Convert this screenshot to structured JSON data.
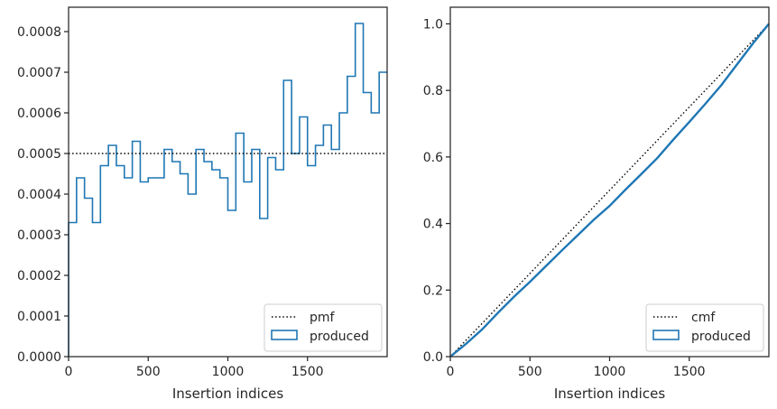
{
  "chart_data": [
    {
      "type": "histogram-step",
      "xlabel": "Insertion indices",
      "ylabel": "",
      "xlim": [
        0,
        2000
      ],
      "ylim": [
        0,
        0.00086
      ],
      "xticks": [
        0,
        500,
        1000,
        1500
      ],
      "xtick_labels": [
        "0",
        "500",
        "1000",
        "1500"
      ],
      "yticks": [
        0,
        0.0001,
        0.0002,
        0.0003,
        0.0004,
        0.0005,
        0.0006,
        0.0007,
        0.0008
      ],
      "ytick_labels": [
        "0.0000",
        "0.0001",
        "0.0002",
        "0.0003",
        "0.0004",
        "0.0005",
        "0.0006",
        "0.0007",
        "0.0008"
      ],
      "grid": false,
      "legend_position": "lower-right",
      "reference": {
        "name": "pmf",
        "y": 0.0005,
        "style": "dotted",
        "color": "#000000"
      },
      "series": [
        {
          "name": "produced",
          "color": "#1f77b4",
          "bin_edges": [
            0,
            50,
            100,
            150,
            200,
            250,
            300,
            350,
            400,
            450,
            500,
            550,
            600,
            650,
            700,
            750,
            800,
            850,
            900,
            950,
            1000,
            1050,
            1100,
            1150,
            1200,
            1250,
            1300,
            1350,
            1400,
            1450,
            1500,
            1550,
            1600,
            1650,
            1700,
            1750,
            1800,
            1850,
            1900,
            1950,
            2000
          ],
          "values": [
            0.00033,
            0.00044,
            0.00039,
            0.00033,
            0.00047,
            0.00052,
            0.00047,
            0.00044,
            0.00053,
            0.00043,
            0.00044,
            0.00044,
            0.00051,
            0.00048,
            0.00045,
            0.0004,
            0.00051,
            0.00048,
            0.00046,
            0.00044,
            0.00036,
            0.00055,
            0.00043,
            0.00051,
            0.00034,
            0.00049,
            0.00046,
            0.00068,
            0.0005,
            0.00059,
            0.00047,
            0.00052,
            0.00057,
            0.00051,
            0.0006,
            0.00069,
            0.00082,
            0.00065,
            0.0006,
            0.0007
          ]
        }
      ]
    },
    {
      "type": "line",
      "xlabel": "Insertion indices",
      "ylabel": "",
      "xlim": [
        0,
        2000
      ],
      "ylim": [
        0,
        1.05
      ],
      "xticks": [
        0,
        500,
        1000,
        1500
      ],
      "xtick_labels": [
        "0",
        "500",
        "1000",
        "1500"
      ],
      "yticks": [
        0,
        0.2,
        0.4,
        0.6,
        0.8,
        1.0
      ],
      "ytick_labels": [
        "0.0",
        "0.2",
        "0.4",
        "0.6",
        "0.8",
        "1.0"
      ],
      "grid": false,
      "legend_position": "lower-right",
      "reference": {
        "name": "cmf",
        "x": [
          0,
          2000
        ],
        "y": [
          0,
          1.0
        ],
        "style": "dotted",
        "color": "#000000"
      },
      "series": [
        {
          "name": "produced",
          "color": "#1f77b4",
          "x": [
            0,
            100,
            200,
            300,
            400,
            500,
            600,
            700,
            800,
            900,
            1000,
            1100,
            1200,
            1300,
            1400,
            1500,
            1600,
            1700,
            1800,
            1900,
            2000
          ],
          "y": [
            0,
            0.039,
            0.082,
            0.132,
            0.18,
            0.225,
            0.272,
            0.319,
            0.365,
            0.411,
            0.453,
            0.502,
            0.549,
            0.597,
            0.652,
            0.705,
            0.759,
            0.815,
            0.878,
            0.941,
            1.0
          ]
        }
      ]
    }
  ]
}
